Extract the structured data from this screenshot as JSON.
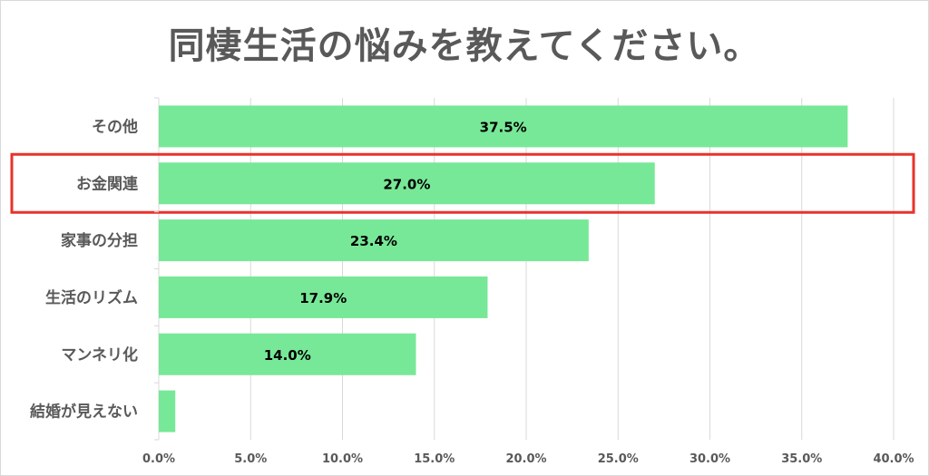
{
  "chart_data": {
    "type": "bar",
    "orientation": "horizontal",
    "title": "同棲生活の悩みを教えてください。",
    "categories": [
      "その他",
      "お金関連",
      "家事の分担",
      "生活のリズム",
      "マンネリ化",
      "結婚が見えない"
    ],
    "values": [
      37.5,
      27.0,
      23.4,
      17.9,
      14.0,
      0.9
    ],
    "data_labels": [
      "37.5%",
      "27.0%",
      "23.4%",
      "17.9%",
      "14.0%",
      ""
    ],
    "xlim": [
      0,
      40
    ],
    "xticks": [
      "0.0%",
      "5.0%",
      "10.0%",
      "15.0%",
      "20.0%",
      "25.0%",
      "30.0%",
      "35.0%",
      "40.0%"
    ],
    "grid": true,
    "legend": "none",
    "highlighted_category": "お金関連",
    "colors": {
      "bar": "#77e897",
      "highlight": "#e8322a",
      "text": "#595959",
      "grid": "#d9d9d9"
    }
  }
}
